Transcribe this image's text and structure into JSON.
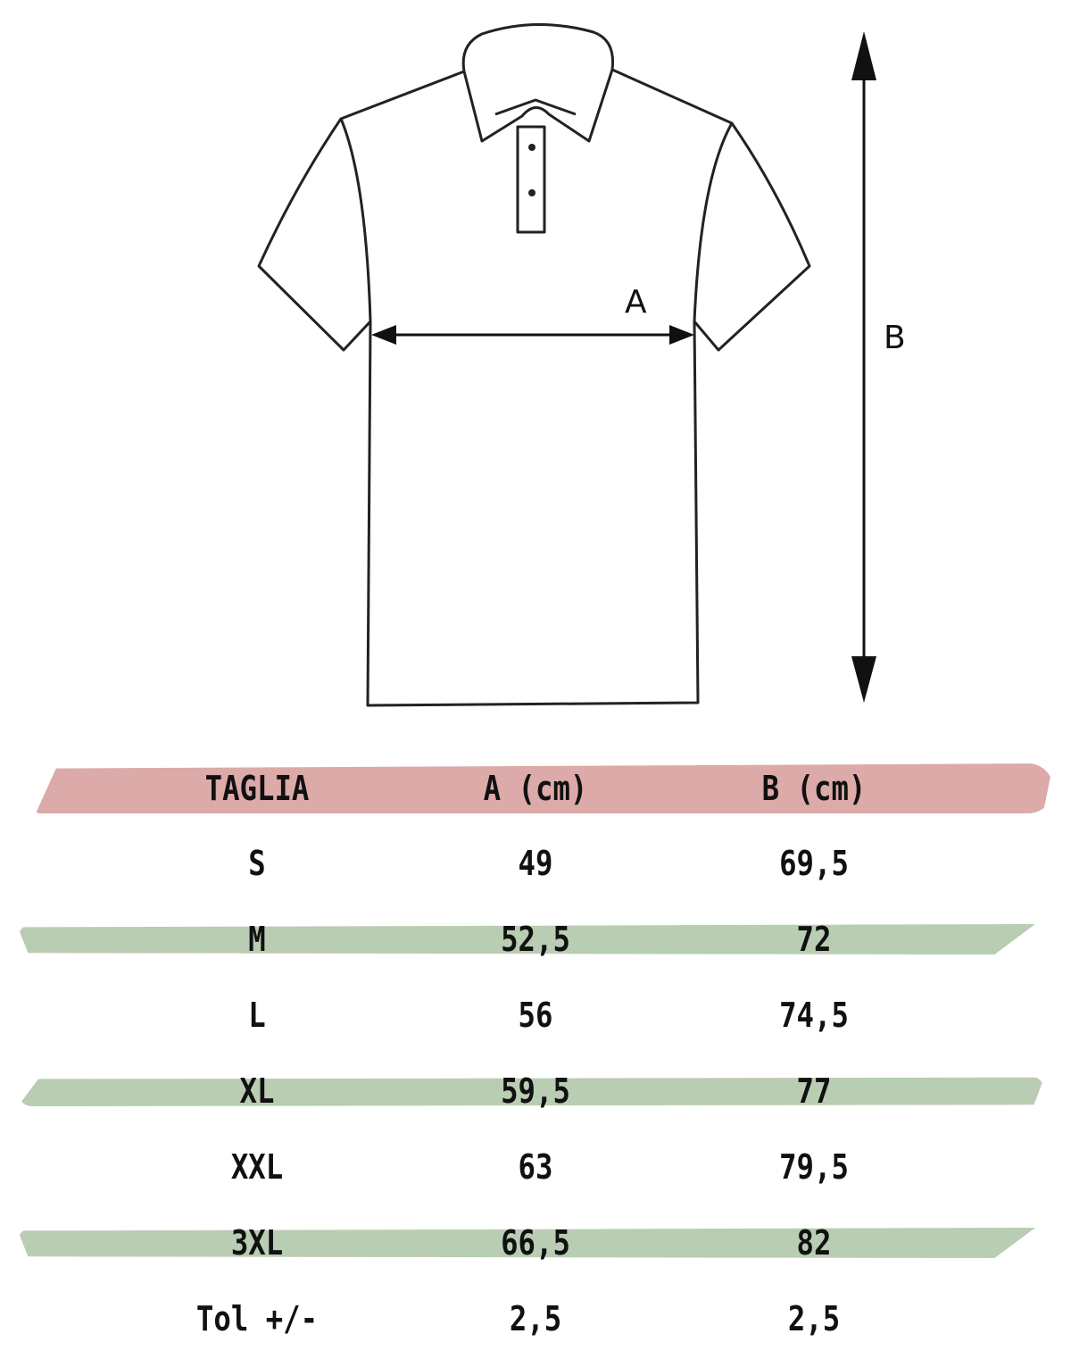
{
  "diagram": {
    "label_a": "A",
    "label_b": "B"
  },
  "colors": {
    "header_stripe": "#dcaaa8",
    "row_stripe": "#b9cdb3"
  },
  "table": {
    "headers": [
      "TAGLIA",
      "A (cm)",
      "B (cm)"
    ],
    "rows": [
      [
        "S",
        "49",
        "69,5"
      ],
      [
        "M",
        "52,5",
        "72"
      ],
      [
        "L",
        "56",
        "74,5"
      ],
      [
        "XL",
        "59,5",
        "77"
      ],
      [
        "XXL",
        "63",
        "79,5"
      ],
      [
        "3XL",
        "66,5",
        "82"
      ],
      [
        "Tol +/-",
        "2,5",
        "2,5"
      ]
    ]
  }
}
